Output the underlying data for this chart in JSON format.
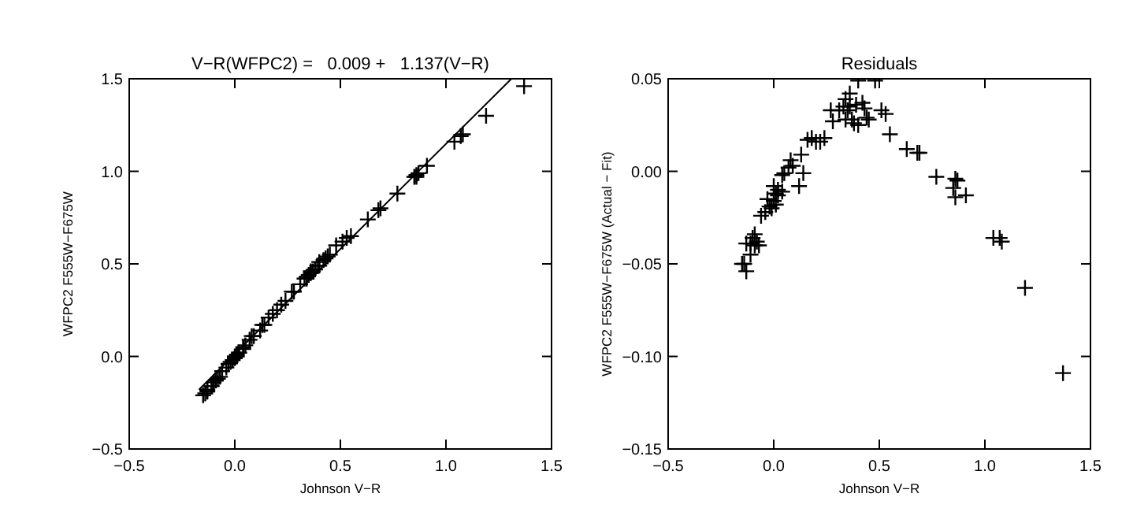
{
  "chart_data": [
    {
      "type": "scatter",
      "title": "V−R(WFPC2) =   0.009 +   1.137(V−R)",
      "xlabel": "Johnson V−R",
      "ylabel": "WFPC2 F555W−F675W",
      "xlim": [
        -0.5,
        1.5
      ],
      "ylim": [
        -0.5,
        1.5
      ],
      "xticks": [
        {
          "value": -0.5,
          "label": "−0.5"
        },
        {
          "value": 0,
          "label": "0.0"
        },
        {
          "value": 0.5,
          "label": "0.5"
        },
        {
          "value": 1,
          "label": "1.0"
        },
        {
          "value": 1.5,
          "label": "1.5"
        }
      ],
      "yticks": [
        {
          "value": -0.5,
          "label": "−0.5"
        },
        {
          "value": 0,
          "label": "0.0"
        },
        {
          "value": 0.5,
          "label": "0.5"
        },
        {
          "value": 1,
          "label": "1.0"
        },
        {
          "value": 1.5,
          "label": "1.5"
        }
      ],
      "grid": false,
      "marker": "cross",
      "x": [
        -0.15,
        -0.14,
        -0.13,
        -0.13,
        -0.11,
        -0.11,
        -0.1,
        -0.09,
        -0.09,
        -0.08,
        -0.07,
        -0.06,
        -0.04,
        -0.03,
        -0.02,
        -0.01,
        0.0,
        0.0,
        0.01,
        0.01,
        0.02,
        0.02,
        0.04,
        0.04,
        0.05,
        0.07,
        0.08,
        0.09,
        0.12,
        0.13,
        0.14,
        0.16,
        0.18,
        0.2,
        0.22,
        0.24,
        0.27,
        0.28,
        0.31,
        0.33,
        0.34,
        0.34,
        0.35,
        0.36,
        0.36,
        0.37,
        0.38,
        0.39,
        0.4,
        0.4,
        0.42,
        0.43,
        0.44,
        0.45,
        0.48,
        0.51,
        0.53,
        0.55,
        0.63,
        0.68,
        0.69,
        0.77,
        0.85,
        0.86,
        0.86,
        0.87,
        0.91,
        1.04,
        1.07,
        1.08,
        1.19,
        1.37
      ],
      "series": [
        {
          "color": "#000000",
          "values": [
            -0.21,
            -0.2,
            -0.19,
            -0.18,
            -0.16,
            -0.16,
            -0.14,
            -0.13,
            -0.13,
            -0.12,
            -0.11,
            -0.08,
            -0.06,
            -0.04,
            -0.03,
            -0.02,
            -0.01,
            0.0,
            0.01,
            0.0,
            0.02,
            0.02,
            0.04,
            0.05,
            0.06,
            0.09,
            0.11,
            0.11,
            0.14,
            0.17,
            0.17,
            0.21,
            0.23,
            0.25,
            0.28,
            0.3,
            0.35,
            0.35,
            0.39,
            0.42,
            0.43,
            0.42,
            0.44,
            0.46,
            0.45,
            0.46,
            0.47,
            0.49,
            0.51,
            0.49,
            0.52,
            0.53,
            0.54,
            0.55,
            0.6,
            0.62,
            0.64,
            0.65,
            0.74,
            0.79,
            0.8,
            0.88,
            0.97,
            0.97,
            0.98,
            0.99,
            1.03,
            1.16,
            1.19,
            1.2,
            1.3,
            1.46
          ]
        },
        {
          "type": "line",
          "color": "#000000",
          "x": [
            -0.17,
            1.31
          ],
          "values": [
            -0.18,
            1.5
          ],
          "marker": "none",
          "line_style": "solid"
        }
      ]
    },
    {
      "type": "scatter",
      "title": "Residuals",
      "xlabel": "Johnson V−R",
      "ylabel": "WFPC2 F555W−F675W (Actual − Fit)",
      "xlim": [
        -0.5,
        1.5
      ],
      "ylim": [
        -0.15,
        0.05
      ],
      "xticks": [
        {
          "value": -0.5,
          "label": "−0.5"
        },
        {
          "value": 0,
          "label": "0.0"
        },
        {
          "value": 0.5,
          "label": "0.5"
        },
        {
          "value": 1,
          "label": "1.0"
        },
        {
          "value": 1.5,
          "label": "1.5"
        }
      ],
      "yticks": [
        {
          "value": -0.15,
          "label": "−0.15"
        },
        {
          "value": -0.1,
          "label": "−0.10"
        },
        {
          "value": -0.05,
          "label": "−0.05"
        },
        {
          "value": 0,
          "label": "0.00"
        },
        {
          "value": 0.05,
          "label": "0.05"
        }
      ],
      "grid": false,
      "marker": "cross",
      "x": [
        -0.15,
        -0.14,
        -0.13,
        -0.13,
        -0.11,
        -0.11,
        -0.1,
        -0.09,
        -0.09,
        -0.08,
        -0.07,
        -0.06,
        -0.04,
        -0.03,
        -0.02,
        -0.01,
        0.0,
        0.0,
        0.01,
        0.01,
        0.02,
        0.02,
        0.04,
        0.04,
        0.05,
        0.07,
        0.08,
        0.09,
        0.12,
        0.13,
        0.14,
        0.16,
        0.18,
        0.2,
        0.22,
        0.24,
        0.27,
        0.28,
        0.31,
        0.33,
        0.34,
        0.34,
        0.35,
        0.36,
        0.36,
        0.37,
        0.38,
        0.39,
        0.4,
        0.4,
        0.42,
        0.43,
        0.44,
        0.45,
        0.48,
        0.51,
        0.53,
        0.55,
        0.63,
        0.68,
        0.69,
        0.77,
        0.85,
        0.86,
        0.86,
        0.87,
        0.91,
        1.04,
        1.07,
        1.08,
        1.19,
        1.37
      ],
      "series": [
        {
          "color": "#000000",
          "values": [
            -0.05,
            -0.05,
            -0.054,
            -0.039,
            -0.039,
            -0.045,
            -0.036,
            -0.034,
            -0.04,
            -0.038,
            -0.04,
            -0.024,
            -0.022,
            -0.015,
            -0.019,
            -0.02,
            -0.016,
            -0.008,
            -0.012,
            -0.018,
            -0.013,
            -0.01,
            -0.011,
            -0.002,
            -0.001,
            0.002,
            0.006,
            0.003,
            -0.008,
            0.009,
            -0.001,
            0.017,
            0.018,
            0.016,
            0.016,
            0.018,
            0.033,
            0.027,
            0.033,
            0.035,
            0.039,
            0.028,
            0.033,
            0.042,
            0.035,
            0.028,
            0.026,
            0.036,
            0.049,
            0.025,
            0.037,
            0.034,
            0.029,
            0.028,
            0.049,
            0.033,
            0.031,
            0.02,
            0.012,
            0.01,
            0.01,
            -0.003,
            -0.009,
            -0.014,
            -0.004,
            -0.005,
            -0.013,
            -0.036,
            -0.036,
            -0.038,
            -0.063,
            -0.109
          ]
        }
      ]
    }
  ]
}
